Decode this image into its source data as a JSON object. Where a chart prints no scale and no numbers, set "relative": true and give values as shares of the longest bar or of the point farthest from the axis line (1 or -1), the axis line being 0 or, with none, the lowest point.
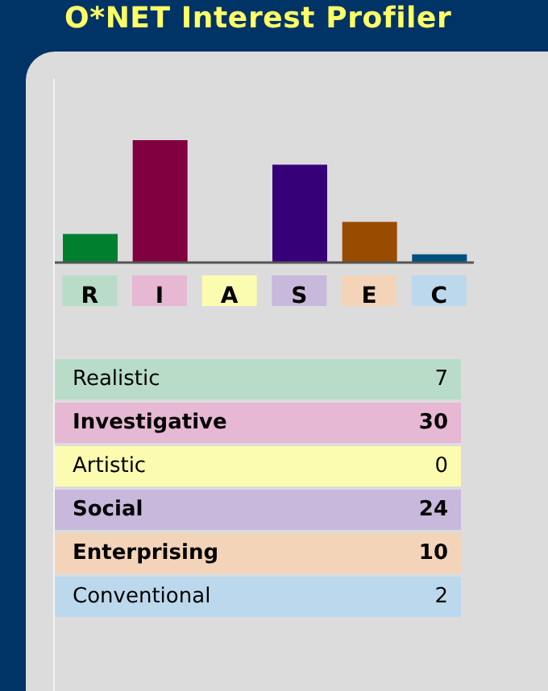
{
  "chart_data": [
    {
      "type": "bar",
      "title": "O*NET Interest Profiler",
      "categories": [
        "R",
        "I",
        "A",
        "S",
        "E",
        "C"
      ],
      "values": [
        0.233,
        1,
        0,
        0.8,
        0.333,
        0.067
      ],
      "relative": true,
      "colors": [
        "#00802f",
        "#800040",
        "#e6c800",
        "#360079",
        "#994c00",
        "#005080"
      ],
      "legend": false,
      "grid": false
    },
    {
      "type": "other",
      "categories": [
        "Realistic",
        "Investigative",
        "Artistic",
        "Social",
        "Enterprising",
        "Conventional"
      ],
      "values": [
        7,
        30,
        0,
        24,
        10,
        2
      ],
      "value_labels": [
        "7",
        "30",
        "0",
        "24",
        "10",
        "2"
      ],
      "colors": [
        "#b8dcc8",
        "#e6b8d4",
        "#fcfcb0",
        "#c8b8dc",
        "#f4d4b8",
        "#bcd8ec"
      ]
    }
  ]
}
